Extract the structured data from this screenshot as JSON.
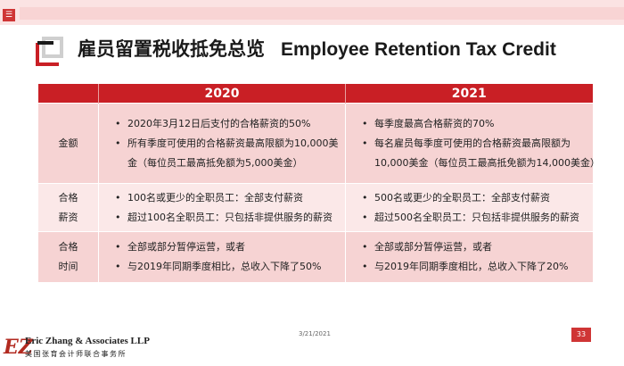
{
  "header": {
    "menu_icon": "☰",
    "title_cn": "雇员留置税收抵免总览",
    "title_en": "Employee Retention Tax Credit"
  },
  "table": {
    "columns": [
      "2020",
      "2021"
    ],
    "rows": [
      {
        "label": "金额",
        "col2020": [
          "2020年3月12日后支付的合格薪资的50%",
          "所有季度可使用的合格薪资最高限额为10,000美",
          "金（每位员工最高抵免额为5,000美金）"
        ],
        "col2021": [
          "每季度最高合格薪资的70%",
          "每名雇员每季度可使用的合格薪资最高限额为",
          "10,000美金（每位员工最高抵免额为14,000美金）"
        ]
      },
      {
        "label_line1": "合格",
        "label_line2": "薪资",
        "col2020": [
          "100名或更少的全职员工：全部支付薪资",
          "超过100名全职员工：只包括非提供服务的薪资"
        ],
        "col2021": [
          "500名或更少的全职员工：全部支付薪资",
          "超过500名全职员工：只包括非提供服务的薪资"
        ]
      },
      {
        "label_line1": "合格",
        "label_line2": "时间",
        "col2020": [
          "全部或部分暂停运营，或者",
          "与2019年同期季度相比，总收入下降了50%"
        ],
        "col2021": [
          "全部或部分暂停运营，或者",
          "与2019年同期季度相比，总收入下降了20%"
        ]
      }
    ]
  },
  "footer": {
    "date": "3/21/2021",
    "page": "33",
    "logo_mark": "EZ",
    "firm_en": "Eric Zhang & Associates LLP",
    "firm_cn": "美国张育会计师联合事务所"
  },
  "colors": {
    "accent": "#c91f25",
    "row_dark": "#f6d3d3",
    "row_light": "#fbe8e8"
  }
}
